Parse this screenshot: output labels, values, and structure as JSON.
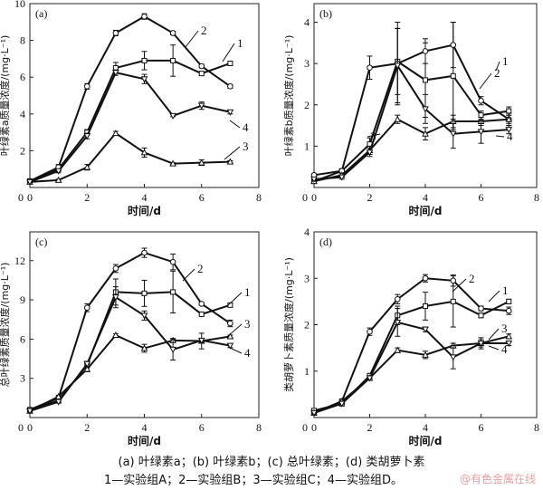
{
  "chart_data": [
    {
      "type": "line",
      "panel_label": "(a)",
      "xlabel": "时间/d",
      "ylabel": "叶绿素a质量浓度/(mg·L⁻¹)",
      "xlim": [
        0,
        8
      ],
      "ylim": [
        0,
        10
      ],
      "xticks": [
        0,
        2,
        4,
        6,
        8
      ],
      "yticks": [
        0,
        2,
        4,
        6,
        8,
        10
      ],
      "x": [
        0,
        1,
        2,
        3,
        4,
        5,
        6,
        7
      ],
      "series": [
        {
          "name": "1",
          "marker": "square",
          "values": [
            0.35,
            1.0,
            3.0,
            6.5,
            6.9,
            6.9,
            6.2,
            6.75
          ],
          "err": [
            0.1,
            0.1,
            0.15,
            0.3,
            0.5,
            0.85,
            0.1,
            0.1
          ]
        },
        {
          "name": "2",
          "marker": "circle",
          "values": [
            0.35,
            1.1,
            5.5,
            8.4,
            9.3,
            8.4,
            6.6,
            5.5
          ],
          "err": [
            0.1,
            0.15,
            0.15,
            0.15,
            0.15,
            0.1,
            0.1,
            0.1
          ]
        },
        {
          "name": "3",
          "marker": "triangle-up",
          "values": [
            0.3,
            0.4,
            1.1,
            2.95,
            1.9,
            1.3,
            1.35,
            1.4
          ],
          "err": [
            0.05,
            0.05,
            0.15,
            0.1,
            0.25,
            0.05,
            0.15,
            0.05
          ]
        },
        {
          "name": "4",
          "marker": "triangle-down",
          "values": [
            0.3,
            0.9,
            2.8,
            6.25,
            5.9,
            3.9,
            4.45,
            4.1
          ],
          "err": [
            0.05,
            0.1,
            0.15,
            0.15,
            0.25,
            0.05,
            0.2,
            0.1
          ]
        }
      ]
    },
    {
      "type": "line",
      "panel_label": "(b)",
      "xlabel": "时间/d",
      "ylabel": "叶绿素b质量浓度/(mg·L⁻¹)",
      "xlim": [
        0,
        8
      ],
      "ylim": [
        0,
        4.45
      ],
      "xticks": [
        0,
        2,
        4,
        6,
        8
      ],
      "yticks": [
        0,
        1,
        2,
        3,
        4
      ],
      "x": [
        0,
        1,
        2,
        3,
        4,
        5,
        6,
        7
      ],
      "series": [
        {
          "name": "1",
          "marker": "square",
          "values": [
            0.15,
            0.4,
            1.05,
            3.05,
            2.6,
            2.7,
            1.75,
            1.85
          ],
          "err": [
            0.03,
            0.05,
            0.15,
            0.8,
            0.9,
            1.3,
            0.1,
            0.1
          ]
        },
        {
          "name": "2",
          "marker": "circle",
          "values": [
            0.3,
            0.4,
            2.9,
            3.0,
            3.3,
            3.45,
            2.1,
            1.65
          ],
          "err": [
            0.03,
            0.05,
            0.28,
            1.0,
            0.3,
            0.55,
            0.1,
            0.15
          ]
        },
        {
          "name": "3",
          "marker": "triangle-up",
          "values": [
            0.15,
            0.3,
            0.9,
            1.65,
            1.3,
            1.6,
            1.6,
            1.65
          ],
          "err": [
            0.03,
            0.05,
            0.1,
            0.1,
            0.15,
            0.15,
            0.1,
            0.1
          ]
        },
        {
          "name": "4",
          "marker": "triangle-down",
          "values": [
            0.2,
            0.25,
            0.85,
            2.95,
            1.9,
            1.3,
            1.35,
            1.4
          ],
          "err": [
            0.03,
            0.05,
            0.1,
            0.9,
            0.35,
            0.35,
            0.28,
            0.1
          ]
        }
      ]
    },
    {
      "type": "line",
      "panel_label": "(c)",
      "xlabel": "时间/d",
      "ylabel": "总叶绿素质量浓度/(mg·L⁻¹)",
      "xlim": [
        0,
        8
      ],
      "ylim": [
        0,
        14.2
      ],
      "xticks": [
        0,
        2,
        4,
        6,
        8
      ],
      "yticks": [
        0,
        3,
        6,
        9,
        12
      ],
      "x": [
        0,
        1,
        2,
        3,
        4,
        5,
        6,
        7
      ],
      "series": [
        {
          "name": "1",
          "marker": "square",
          "values": [
            0.6,
            1.3,
            4.0,
            9.6,
            9.5,
            9.6,
            7.9,
            8.6
          ],
          "err": [
            0.1,
            0.1,
            0.2,
            1.0,
            1.0,
            1.6,
            0.1,
            0.1
          ]
        },
        {
          "name": "2",
          "marker": "circle",
          "values": [
            0.6,
            1.5,
            8.4,
            11.4,
            12.6,
            11.9,
            8.7,
            7.2
          ],
          "err": [
            0.1,
            0.1,
            0.3,
            0.3,
            0.35,
            0.6,
            0.1,
            0.25
          ]
        },
        {
          "name": "3",
          "marker": "triangle-up",
          "values": [
            0.5,
            1.6,
            3.7,
            6.3,
            5.3,
            5.9,
            5.85,
            6.2
          ],
          "err": [
            0.1,
            0.1,
            0.2,
            0.1,
            0.3,
            0.15,
            0.6,
            0.1
          ]
        },
        {
          "name": "4",
          "marker": "triangle-down",
          "values": [
            0.5,
            1.2,
            4.1,
            9.2,
            7.8,
            5.2,
            5.9,
            5.5
          ],
          "err": [
            0.1,
            0.1,
            0.2,
            0.8,
            0.35,
            0.8,
            0.15,
            0.15
          ]
        }
      ]
    },
    {
      "type": "line",
      "panel_label": "(d)",
      "xlabel": "时间/d",
      "ylabel": "类胡萝卜素质量浓度/(mg·L⁻¹)",
      "xlim": [
        0,
        8
      ],
      "ylim": [
        0,
        4
      ],
      "xticks": [
        0,
        2,
        4,
        6,
        8
      ],
      "yticks": [
        0,
        1,
        2,
        3,
        4
      ],
      "x": [
        0,
        1,
        2,
        3,
        4,
        5,
        6,
        7
      ],
      "series": [
        {
          "name": "1",
          "marker": "square",
          "values": [
            0.15,
            0.3,
            0.9,
            2.2,
            2.4,
            2.5,
            2.2,
            2.5
          ],
          "err": [
            0.03,
            0.05,
            0.05,
            0.2,
            0.3,
            0.55,
            0.05,
            0.05
          ]
        },
        {
          "name": "2",
          "marker": "circle",
          "values": [
            0.1,
            0.35,
            1.85,
            2.55,
            3.0,
            2.95,
            2.35,
            2.3
          ],
          "err": [
            0.03,
            0.05,
            0.08,
            0.1,
            0.08,
            0.12,
            0.05,
            0.08
          ]
        },
        {
          "name": "3",
          "marker": "triangle-up",
          "values": [
            0.1,
            0.35,
            0.85,
            1.45,
            1.35,
            1.55,
            1.6,
            1.75
          ],
          "err": [
            0.03,
            0.05,
            0.05,
            0.05,
            0.08,
            0.05,
            0.12,
            0.05
          ]
        },
        {
          "name": "4",
          "marker": "triangle-down",
          "values": [
            0.1,
            0.3,
            0.85,
            2.05,
            1.9,
            1.3,
            1.6,
            1.6
          ],
          "err": [
            0.03,
            0.05,
            0.05,
            0.3,
            0.05,
            0.25,
            0.08,
            0.05
          ]
        }
      ]
    }
  ],
  "caption": {
    "line1": "(a) 叶绿素a；(b) 叶绿素b；(c) 总叶绿素；(d) 类胡萝卜素",
    "line2": "1—实验组A；2—实验组B；3—实验组C；4—实验组D。"
  },
  "watermark": "@有色金属在线"
}
